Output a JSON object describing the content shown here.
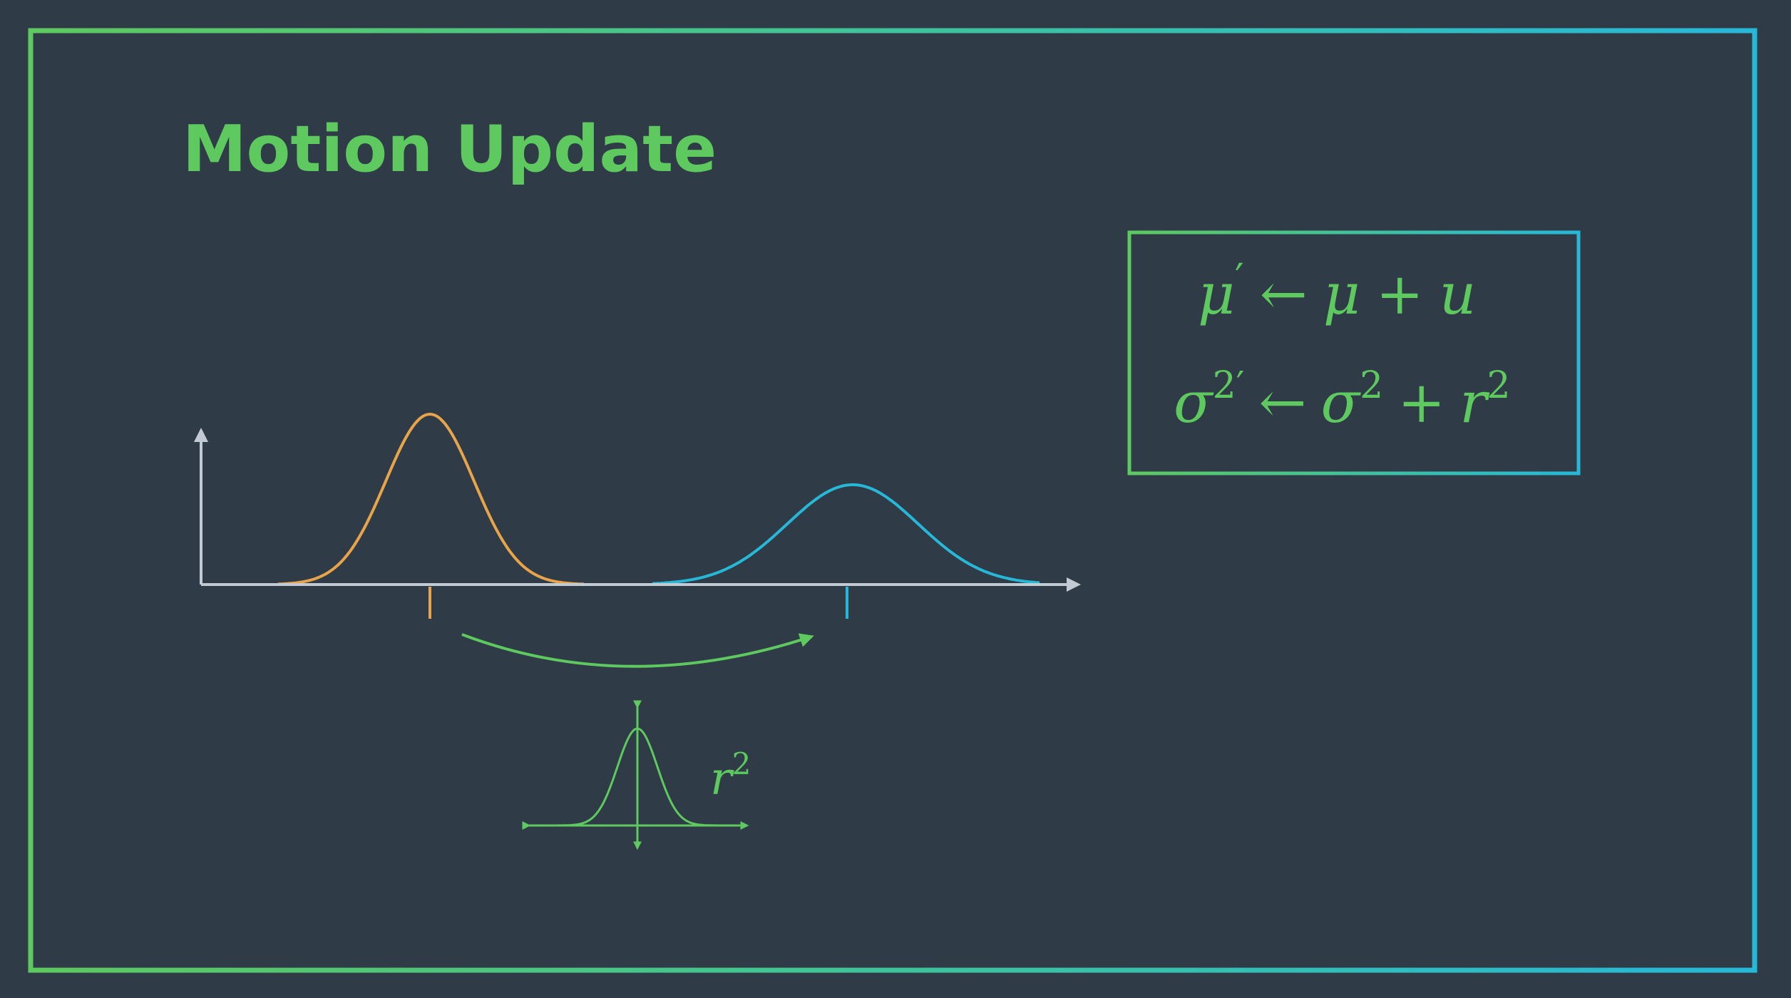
{
  "slide": {
    "title": "Motion Update"
  },
  "colors": {
    "background": "#2f3b47",
    "green": "#5ec95f",
    "cyan": "#27b8d8",
    "orange": "#e8a44a",
    "axis": "#c2cad3"
  },
  "equations": {
    "mean": {
      "lhs_symbol": "μ",
      "lhs_prime": "′",
      "arrow": "←",
      "rhs_symbol": "μ",
      "plus": "+",
      "rhs_term": "u"
    },
    "variance": {
      "lhs_symbol": "σ",
      "lhs_exponent": "2",
      "lhs_prime": "′",
      "arrow": "←",
      "rhs_symbol": "σ",
      "rhs_exponent": "2",
      "plus": "+",
      "rhs_term": "r",
      "rhs_term_exponent": "2"
    }
  },
  "noise_label": {
    "symbol": "r",
    "exponent": "2"
  }
}
